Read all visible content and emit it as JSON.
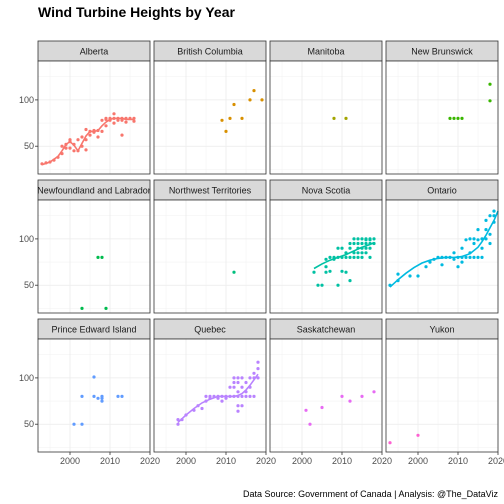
{
  "chart_data": {
    "type": "scatter",
    "title": "Wind Turbine Heights by Year",
    "caption": "Data Source: Government of Canada | Analysis: @The_DataViz",
    "xlim": [
      1992,
      2020
    ],
    "ylim": [
      20,
      142
    ],
    "x_ticks": [
      2000,
      2010,
      2020
    ],
    "y_ticks": [
      50,
      100
    ],
    "grid": true,
    "legend": "none",
    "facets": [
      {
        "name": "Alberta",
        "color": "#F8766D",
        "points": [
          [
            1993,
            31
          ],
          [
            1994,
            32
          ],
          [
            1995,
            33
          ],
          [
            1996,
            35
          ],
          [
            1997,
            38
          ],
          [
            1998,
            42
          ],
          [
            1998,
            50
          ],
          [
            1999,
            48
          ],
          [
            1999,
            52
          ],
          [
            2000,
            55
          ],
          [
            2000,
            57
          ],
          [
            2000,
            48
          ],
          [
            2001,
            52
          ],
          [
            2001,
            45
          ],
          [
            2002,
            45
          ],
          [
            2002,
            57
          ],
          [
            2003,
            50
          ],
          [
            2003,
            60
          ],
          [
            2004,
            57
          ],
          [
            2004,
            46
          ],
          [
            2004,
            68
          ],
          [
            2005,
            62
          ],
          [
            2005,
            66
          ],
          [
            2006,
            65
          ],
          [
            2006,
            67
          ],
          [
            2007,
            60
          ],
          [
            2007,
            67
          ],
          [
            2008,
            78
          ],
          [
            2008,
            66
          ],
          [
            2009,
            80
          ],
          [
            2009,
            79
          ],
          [
            2009,
            72
          ],
          [
            2010,
            80
          ],
          [
            2010,
            78
          ],
          [
            2011,
            85
          ],
          [
            2011,
            80
          ],
          [
            2011,
            75
          ],
          [
            2012,
            78
          ],
          [
            2012,
            80
          ],
          [
            2013,
            80
          ],
          [
            2013,
            78
          ],
          [
            2013,
            62
          ],
          [
            2014,
            80
          ],
          [
            2014,
            76
          ],
          [
            2015,
            80
          ],
          [
            2016,
            80
          ],
          [
            2016,
            77
          ]
        ],
        "smooth": [
          [
            1993,
            30
          ],
          [
            1995,
            33
          ],
          [
            1997,
            39
          ],
          [
            1998,
            45
          ],
          [
            1999,
            52
          ],
          [
            2000,
            55
          ],
          [
            2001,
            51
          ],
          [
            2002,
            45
          ],
          [
            2003,
            53
          ],
          [
            2004,
            61
          ],
          [
            2005,
            66
          ],
          [
            2006,
            66
          ],
          [
            2007,
            67
          ],
          [
            2008,
            72
          ],
          [
            2009,
            76
          ],
          [
            2010,
            79
          ],
          [
            2011,
            80
          ],
          [
            2012,
            80
          ],
          [
            2013,
            80
          ],
          [
            2014,
            79
          ],
          [
            2015,
            79
          ],
          [
            2016,
            79
          ]
        ]
      },
      {
        "name": "British Columbia",
        "color": "#D89000",
        "points": [
          [
            2009,
            78
          ],
          [
            2010,
            66
          ],
          [
            2011,
            80
          ],
          [
            2012,
            95
          ],
          [
            2014,
            80
          ],
          [
            2016,
            100
          ],
          [
            2017,
            110
          ],
          [
            2019,
            100
          ]
        ],
        "smooth": []
      },
      {
        "name": "Manitoba",
        "color": "#A3A500",
        "points": [
          [
            2008,
            80
          ],
          [
            2011,
            80
          ]
        ],
        "smooth": []
      },
      {
        "name": "New Brunswick",
        "color": "#39B600",
        "points": [
          [
            2008,
            80
          ],
          [
            2009,
            80
          ],
          [
            2010,
            80
          ],
          [
            2011,
            80
          ],
          [
            2018,
            99
          ],
          [
            2018,
            117
          ]
        ],
        "smooth": []
      },
      {
        "name": "Newfoundland and Labrador",
        "color": "#00BB4E",
        "points": [
          [
            2003,
            25
          ],
          [
            2007,
            80
          ],
          [
            2008,
            80
          ],
          [
            2009,
            25
          ]
        ],
        "smooth": []
      },
      {
        "name": "Northwest Territories",
        "color": "#00BF7D",
        "points": [
          [
            2012,
            64
          ]
        ],
        "smooth": []
      },
      {
        "name": "Nova Scotia",
        "color": "#00C1A3",
        "points": [
          [
            2003,
            64
          ],
          [
            2004,
            50
          ],
          [
            2005,
            50
          ],
          [
            2006,
            70
          ],
          [
            2006,
            78
          ],
          [
            2006,
            64
          ],
          [
            2007,
            80
          ],
          [
            2007,
            65
          ],
          [
            2008,
            80
          ],
          [
            2008,
            78
          ],
          [
            2009,
            80
          ],
          [
            2009,
            90
          ],
          [
            2009,
            50
          ],
          [
            2010,
            65
          ],
          [
            2010,
            80
          ],
          [
            2010,
            90
          ],
          [
            2011,
            80
          ],
          [
            2011,
            85
          ],
          [
            2011,
            64
          ],
          [
            2012,
            80
          ],
          [
            2012,
            90
          ],
          [
            2012,
            55
          ],
          [
            2012,
            95
          ],
          [
            2013,
            80
          ],
          [
            2013,
            95
          ],
          [
            2013,
            100
          ],
          [
            2013,
            85
          ],
          [
            2014,
            80
          ],
          [
            2014,
            95
          ],
          [
            2014,
            100
          ],
          [
            2014,
            90
          ],
          [
            2014,
            85
          ],
          [
            2015,
            80
          ],
          [
            2015,
            100
          ],
          [
            2015,
            95
          ],
          [
            2015,
            90
          ],
          [
            2015,
            85
          ],
          [
            2016,
            99
          ],
          [
            2016,
            95
          ],
          [
            2016,
            90
          ],
          [
            2016,
            100
          ],
          [
            2016,
            85
          ],
          [
            2017,
            99
          ],
          [
            2017,
            95
          ],
          [
            2017,
            100
          ],
          [
            2017,
            90
          ],
          [
            2017,
            80
          ],
          [
            2018,
            100
          ],
          [
            2018,
            95
          ]
        ],
        "smooth": [
          [
            2003,
            68
          ],
          [
            2005,
            73
          ],
          [
            2007,
            77
          ],
          [
            2009,
            80
          ],
          [
            2011,
            83
          ],
          [
            2013,
            87
          ],
          [
            2015,
            91
          ],
          [
            2017,
            94
          ],
          [
            2018,
            96
          ]
        ]
      },
      {
        "name": "Ontario",
        "color": "#00BAE0",
        "points": [
          [
            1993,
            50
          ],
          [
            1995,
            55
          ],
          [
            1995,
            62
          ],
          [
            1998,
            60
          ],
          [
            2000,
            60
          ],
          [
            2002,
            70
          ],
          [
            2003,
            75
          ],
          [
            2004,
            78
          ],
          [
            2005,
            80
          ],
          [
            2006,
            80
          ],
          [
            2006,
            72
          ],
          [
            2007,
            80
          ],
          [
            2008,
            80
          ],
          [
            2009,
            78
          ],
          [
            2009,
            85
          ],
          [
            2010,
            80
          ],
          [
            2010,
            70
          ],
          [
            2011,
            80
          ],
          [
            2011,
            75
          ],
          [
            2011,
            90
          ],
          [
            2012,
            80
          ],
          [
            2012,
            99
          ],
          [
            2013,
            80
          ],
          [
            2013,
            100
          ],
          [
            2013,
            85
          ],
          [
            2014,
            100
          ],
          [
            2014,
            80
          ],
          [
            2014,
            95
          ],
          [
            2015,
            99
          ],
          [
            2015,
            110
          ],
          [
            2015,
            80
          ],
          [
            2016,
            100
          ],
          [
            2016,
            90
          ],
          [
            2016,
            80
          ],
          [
            2017,
            100
          ],
          [
            2017,
            120
          ],
          [
            2017,
            110
          ],
          [
            2018,
            105
          ],
          [
            2018,
            125
          ],
          [
            2018,
            95
          ],
          [
            2019,
            130
          ],
          [
            2019,
            125
          ],
          [
            2019,
            118
          ]
        ],
        "smooth": [
          [
            1993,
            48
          ],
          [
            1995,
            56
          ],
          [
            1997,
            63
          ],
          [
            1999,
            69
          ],
          [
            2001,
            74
          ],
          [
            2003,
            77
          ],
          [
            2005,
            79
          ],
          [
            2007,
            80
          ],
          [
            2009,
            80
          ],
          [
            2011,
            81
          ],
          [
            2013,
            84
          ],
          [
            2015,
            91
          ],
          [
            2016,
            97
          ],
          [
            2017,
            104
          ],
          [
            2018,
            112
          ],
          [
            2019,
            120
          ],
          [
            2020,
            130
          ]
        ]
      },
      {
        "name": "Prince Edward Island",
        "color": "#619CFF",
        "points": [
          [
            2001,
            50
          ],
          [
            2003,
            80
          ],
          [
            2003,
            50
          ],
          [
            2006,
            101
          ],
          [
            2006,
            80
          ],
          [
            2007,
            78
          ],
          [
            2008,
            80
          ],
          [
            2008,
            75
          ],
          [
            2008,
            78
          ],
          [
            2012,
            80
          ],
          [
            2013,
            80
          ]
        ],
        "smooth": []
      },
      {
        "name": "Quebec",
        "color": "#B983FF",
        "points": [
          [
            1998,
            50
          ],
          [
            1998,
            55
          ],
          [
            1999,
            55
          ],
          [
            2000,
            60
          ],
          [
            2002,
            65
          ],
          [
            2003,
            70
          ],
          [
            2004,
            67
          ],
          [
            2005,
            75
          ],
          [
            2005,
            80
          ],
          [
            2006,
            78
          ],
          [
            2006,
            80
          ],
          [
            2007,
            80
          ],
          [
            2008,
            80
          ],
          [
            2008,
            78
          ],
          [
            2009,
            80
          ],
          [
            2009,
            75
          ],
          [
            2010,
            80
          ],
          [
            2010,
            78
          ],
          [
            2011,
            80
          ],
          [
            2011,
            90
          ],
          [
            2012,
            80
          ],
          [
            2012,
            100
          ],
          [
            2012,
            95
          ],
          [
            2012,
            90
          ],
          [
            2013,
            80
          ],
          [
            2013,
            100
          ],
          [
            2013,
            95
          ],
          [
            2013,
            85
          ],
          [
            2013,
            70
          ],
          [
            2013,
            64
          ],
          [
            2014,
            80
          ],
          [
            2014,
            90
          ],
          [
            2014,
            100
          ],
          [
            2014,
            70
          ],
          [
            2015,
            80
          ],
          [
            2015,
            95
          ],
          [
            2015,
            85
          ],
          [
            2016,
            100
          ],
          [
            2016,
            80
          ],
          [
            2016,
            90
          ],
          [
            2017,
            100
          ],
          [
            2017,
            105
          ],
          [
            2017,
            80
          ],
          [
            2018,
            117
          ],
          [
            2018,
            110
          ],
          [
            2018,
            100
          ]
        ],
        "smooth": [
          [
            1998,
            52
          ],
          [
            2000,
            60
          ],
          [
            2002,
            67
          ],
          [
            2004,
            73
          ],
          [
            2006,
            77
          ],
          [
            2008,
            80
          ],
          [
            2010,
            80
          ],
          [
            2012,
            80
          ],
          [
            2013,
            81
          ],
          [
            2014,
            83
          ],
          [
            2015,
            87
          ],
          [
            2016,
            92
          ],
          [
            2017,
            98
          ],
          [
            2018,
            104
          ]
        ]
      },
      {
        "name": "Saskatchewan",
        "color": "#E76BF3",
        "points": [
          [
            2001,
            65
          ],
          [
            2002,
            50
          ],
          [
            2005,
            68
          ],
          [
            2010,
            80
          ],
          [
            2012,
            75
          ],
          [
            2015,
            80
          ],
          [
            2018,
            85
          ]
        ],
        "smooth": []
      },
      {
        "name": "Yukon",
        "color": "#FD61D1",
        "points": [
          [
            1993,
            30
          ],
          [
            2000,
            38
          ]
        ],
        "smooth": []
      }
    ]
  }
}
